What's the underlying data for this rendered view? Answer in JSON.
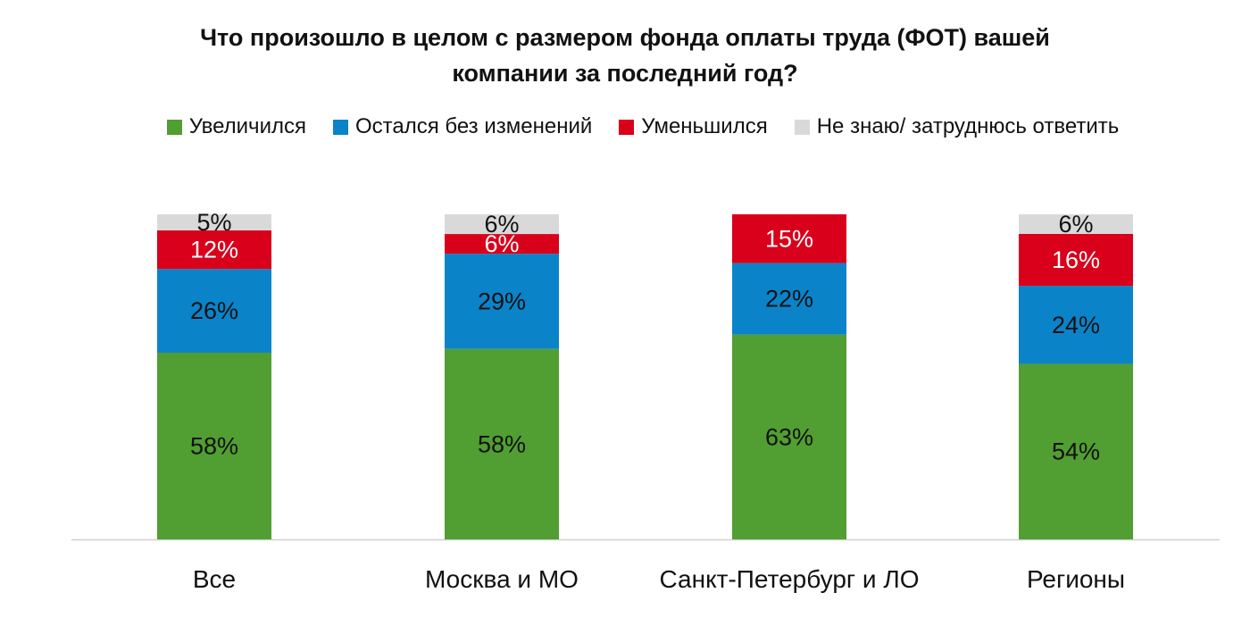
{
  "chart_data": {
    "type": "bar",
    "stacked": true,
    "title": "Что произошло в целом с размером фонда оплаты труда (ФОТ) вашей компании за последний год?",
    "title_lines": [
      "Что произошло в целом с размером фонда оплаты труда (ФОТ) вашей",
      "компании за последний год?"
    ],
    "categories": [
      "Все",
      "Москва и МО",
      "Санкт-Петербург и ЛО",
      "Регионы"
    ],
    "series": [
      {
        "name": "Увеличился",
        "color": "#519e32",
        "label_color": "#111111",
        "values": [
          58,
          58,
          63,
          54
        ]
      },
      {
        "name": "Остался без изменений",
        "color": "#0a83c9",
        "label_color": "#111111",
        "values": [
          26,
          29,
          22,
          24
        ]
      },
      {
        "name": "Уменьшился",
        "color": "#d9001b",
        "label_color": "#ffffff",
        "values": [
          12,
          6,
          15,
          16
        ]
      },
      {
        "name": "Не знаю/ затруднюсь ответить",
        "color": "#d9d9d9",
        "label_color": "#111111",
        "values": [
          5,
          6,
          0,
          6
        ]
      }
    ],
    "value_suffix": "%",
    "legend_position": "top",
    "grid": false,
    "xlabel": "",
    "ylabel": ""
  }
}
